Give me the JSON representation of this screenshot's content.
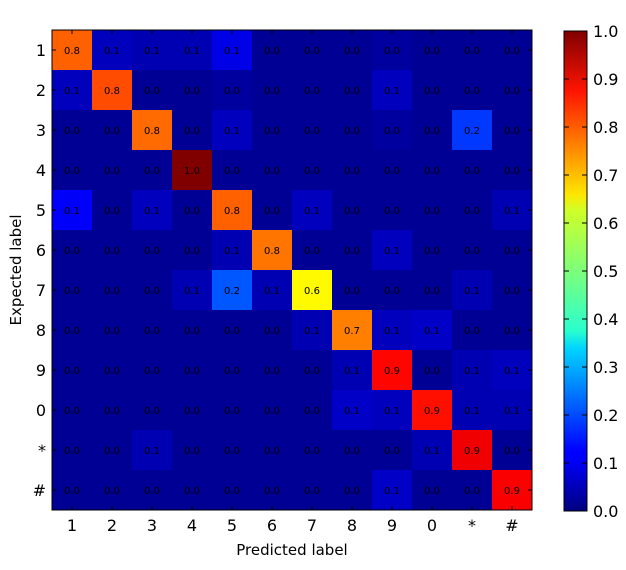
{
  "chart_data": {
    "type": "heatmap",
    "title": "",
    "xlabel": "Predicted label",
    "ylabel": "Expected label",
    "x_categories": [
      "1",
      "2",
      "3",
      "4",
      "5",
      "6",
      "7",
      "8",
      "9",
      "0",
      "*",
      "#"
    ],
    "y_categories": [
      "1",
      "2",
      "3",
      "4",
      "5",
      "6",
      "7",
      "8",
      "9",
      "0",
      "*",
      "#"
    ],
    "values": [
      [
        0.8,
        0.1,
        0.1,
        0.1,
        0.1,
        0.0,
        0.0,
        0.0,
        0.0,
        0.0,
        0.0,
        0.0
      ],
      [
        0.1,
        0.8,
        0.0,
        0.0,
        0.0,
        0.0,
        0.0,
        0.0,
        0.1,
        0.0,
        0.0,
        0.0
      ],
      [
        0.0,
        0.0,
        0.8,
        0.0,
        0.1,
        0.0,
        0.0,
        0.0,
        0.0,
        0.0,
        0.2,
        0.0
      ],
      [
        0.0,
        0.0,
        0.0,
        1.0,
        0.0,
        0.0,
        0.0,
        0.0,
        0.0,
        0.0,
        0.0,
        0.0
      ],
      [
        0.1,
        0.0,
        0.1,
        0.0,
        0.8,
        0.0,
        0.1,
        0.0,
        0.0,
        0.0,
        0.0,
        0.1
      ],
      [
        0.0,
        0.0,
        0.0,
        0.0,
        0.1,
        0.8,
        0.0,
        0.0,
        0.1,
        0.0,
        0.0,
        0.0
      ],
      [
        0.0,
        0.0,
        0.0,
        0.1,
        0.2,
        0.1,
        0.6,
        0.0,
        0.0,
        0.0,
        0.1,
        0.0
      ],
      [
        0.0,
        0.0,
        0.0,
        0.0,
        0.0,
        0.0,
        0.1,
        0.7,
        0.1,
        0.1,
        0.0,
        0.0
      ],
      [
        0.0,
        0.0,
        0.0,
        0.0,
        0.0,
        0.0,
        0.0,
        0.1,
        0.9,
        0.0,
        0.1,
        0.1
      ],
      [
        0.0,
        0.0,
        0.0,
        0.0,
        0.0,
        0.0,
        0.0,
        0.1,
        0.1,
        0.9,
        0.1,
        0.1
      ],
      [
        0.0,
        0.0,
        0.1,
        0.0,
        0.0,
        0.0,
        0.0,
        0.0,
        0.0,
        0.1,
        0.9,
        0.0
      ],
      [
        0.0,
        0.0,
        0.0,
        0.0,
        0.0,
        0.0,
        0.0,
        0.0,
        0.1,
        0.0,
        0.0,
        0.9
      ]
    ],
    "shade_values": [
      [
        0.78,
        0.06,
        0.05,
        0.05,
        0.1,
        0.02,
        0.02,
        0.02,
        0.03,
        0.02,
        0.02,
        0.02
      ],
      [
        0.06,
        0.8,
        0.02,
        0.02,
        0.03,
        0.02,
        0.02,
        0.02,
        0.06,
        0.02,
        0.02,
        0.02
      ],
      [
        0.02,
        0.02,
        0.77,
        0.02,
        0.06,
        0.02,
        0.02,
        0.02,
        0.03,
        0.02,
        0.18,
        0.02
      ],
      [
        0.02,
        0.02,
        0.02,
        1.0,
        0.02,
        0.02,
        0.02,
        0.02,
        0.02,
        0.02,
        0.02,
        0.02
      ],
      [
        0.12,
        0.02,
        0.06,
        0.02,
        0.78,
        0.02,
        0.06,
        0.02,
        0.02,
        0.02,
        0.02,
        0.05
      ],
      [
        0.02,
        0.02,
        0.02,
        0.02,
        0.05,
        0.76,
        0.02,
        0.02,
        0.06,
        0.02,
        0.02,
        0.02
      ],
      [
        0.02,
        0.02,
        0.02,
        0.05,
        0.21,
        0.05,
        0.63,
        0.02,
        0.02,
        0.02,
        0.05,
        0.02
      ],
      [
        0.02,
        0.02,
        0.02,
        0.02,
        0.02,
        0.02,
        0.05,
        0.75,
        0.06,
        0.07,
        0.02,
        0.02
      ],
      [
        0.02,
        0.02,
        0.02,
        0.02,
        0.02,
        0.02,
        0.02,
        0.05,
        0.87,
        0.02,
        0.05,
        0.06
      ],
      [
        0.02,
        0.02,
        0.02,
        0.02,
        0.02,
        0.02,
        0.02,
        0.07,
        0.06,
        0.86,
        0.05,
        0.05
      ],
      [
        0.02,
        0.02,
        0.05,
        0.02,
        0.02,
        0.02,
        0.02,
        0.02,
        0.02,
        0.05,
        0.89,
        0.02
      ],
      [
        0.02,
        0.02,
        0.02,
        0.02,
        0.02,
        0.02,
        0.02,
        0.02,
        0.07,
        0.02,
        0.02,
        0.88
      ]
    ],
    "colorbar": {
      "colormap": "jet",
      "range": [
        0.0,
        1.0
      ],
      "ticks": [
        "0.0",
        "0.1",
        "0.2",
        "0.3",
        "0.4",
        "0.5",
        "0.6",
        "0.7",
        "0.8",
        "0.9",
        "1.0"
      ]
    },
    "grid": false,
    "legend": "colorbar at right"
  }
}
